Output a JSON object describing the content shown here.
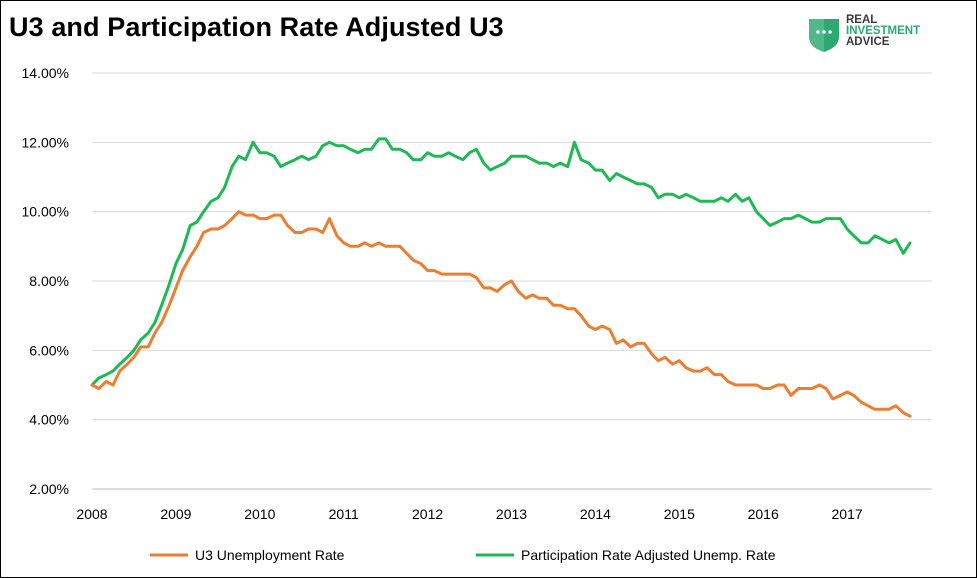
{
  "page_title": "U3 and Participation Rate Adjusted U3",
  "logo": {
    "line1": "REAL",
    "line2": "INVESTMENT",
    "line3": "ADVICE",
    "icon": "shield-dots-icon"
  },
  "chart_data": {
    "type": "line",
    "title": "U3 and Participation Rate Adjusted U3",
    "xlabel": "",
    "ylabel": "",
    "xlim": [
      2008,
      2017.85
    ],
    "ylim": [
      2,
      14
    ],
    "grid": true,
    "legend_position": "bottom",
    "x_tick_labels": [
      "2008",
      "2009",
      "2010",
      "2011",
      "2012",
      "2013",
      "2014",
      "2015",
      "2016",
      "2017"
    ],
    "y_tick_labels": [
      "2.00%",
      "4.00%",
      "6.00%",
      "8.00%",
      "10.00%",
      "12.00%",
      "14.00%"
    ],
    "series": [
      {
        "name": "U3 Unemployment Rate",
        "color": "#ED7D31",
        "points": [
          [
            2008.0,
            5.0
          ],
          [
            2008.08,
            4.9
          ],
          [
            2008.17,
            5.1
          ],
          [
            2008.25,
            5.0
          ],
          [
            2008.33,
            5.4
          ],
          [
            2008.42,
            5.6
          ],
          [
            2008.5,
            5.8
          ],
          [
            2008.58,
            6.1
          ],
          [
            2008.67,
            6.1
          ],
          [
            2008.75,
            6.5
          ],
          [
            2008.83,
            6.8
          ],
          [
            2008.92,
            7.3
          ],
          [
            2009.0,
            7.8
          ],
          [
            2009.08,
            8.3
          ],
          [
            2009.17,
            8.7
          ],
          [
            2009.25,
            9.0
          ],
          [
            2009.33,
            9.4
          ],
          [
            2009.42,
            9.5
          ],
          [
            2009.5,
            9.5
          ],
          [
            2009.58,
            9.6
          ],
          [
            2009.67,
            9.8
          ],
          [
            2009.75,
            10.0
          ],
          [
            2009.83,
            9.9
          ],
          [
            2009.92,
            9.9
          ],
          [
            2010.0,
            9.8
          ],
          [
            2010.08,
            9.8
          ],
          [
            2010.17,
            9.9
          ],
          [
            2010.25,
            9.9
          ],
          [
            2010.33,
            9.6
          ],
          [
            2010.42,
            9.4
          ],
          [
            2010.5,
            9.4
          ],
          [
            2010.58,
            9.5
          ],
          [
            2010.67,
            9.5
          ],
          [
            2010.75,
            9.4
          ],
          [
            2010.83,
            9.8
          ],
          [
            2010.92,
            9.3
          ],
          [
            2011.0,
            9.1
          ],
          [
            2011.08,
            9.0
          ],
          [
            2011.17,
            9.0
          ],
          [
            2011.25,
            9.1
          ],
          [
            2011.33,
            9.0
          ],
          [
            2011.42,
            9.1
          ],
          [
            2011.5,
            9.0
          ],
          [
            2011.58,
            9.0
          ],
          [
            2011.67,
            9.0
          ],
          [
            2011.75,
            8.8
          ],
          [
            2011.83,
            8.6
          ],
          [
            2011.92,
            8.5
          ],
          [
            2012.0,
            8.3
          ],
          [
            2012.08,
            8.3
          ],
          [
            2012.17,
            8.2
          ],
          [
            2012.25,
            8.2
          ],
          [
            2012.33,
            8.2
          ],
          [
            2012.42,
            8.2
          ],
          [
            2012.5,
            8.2
          ],
          [
            2012.58,
            8.1
          ],
          [
            2012.67,
            7.8
          ],
          [
            2012.75,
            7.8
          ],
          [
            2012.83,
            7.7
          ],
          [
            2012.92,
            7.9
          ],
          [
            2013.0,
            8.0
          ],
          [
            2013.08,
            7.7
          ],
          [
            2013.17,
            7.5
          ],
          [
            2013.25,
            7.6
          ],
          [
            2013.33,
            7.5
          ],
          [
            2013.42,
            7.5
          ],
          [
            2013.5,
            7.3
          ],
          [
            2013.58,
            7.3
          ],
          [
            2013.67,
            7.2
          ],
          [
            2013.75,
            7.2
          ],
          [
            2013.83,
            7.0
          ],
          [
            2013.92,
            6.7
          ],
          [
            2014.0,
            6.6
          ],
          [
            2014.08,
            6.7
          ],
          [
            2014.17,
            6.6
          ],
          [
            2014.25,
            6.2
          ],
          [
            2014.33,
            6.3
          ],
          [
            2014.42,
            6.1
          ],
          [
            2014.5,
            6.2
          ],
          [
            2014.58,
            6.2
          ],
          [
            2014.67,
            5.9
          ],
          [
            2014.75,
            5.7
          ],
          [
            2014.83,
            5.8
          ],
          [
            2014.92,
            5.6
          ],
          [
            2015.0,
            5.7
          ],
          [
            2015.08,
            5.5
          ],
          [
            2015.17,
            5.4
          ],
          [
            2015.25,
            5.4
          ],
          [
            2015.33,
            5.5
          ],
          [
            2015.42,
            5.3
          ],
          [
            2015.5,
            5.3
          ],
          [
            2015.58,
            5.1
          ],
          [
            2015.67,
            5.0
          ],
          [
            2015.75,
            5.0
          ],
          [
            2015.83,
            5.0
          ],
          [
            2015.92,
            5.0
          ],
          [
            2016.0,
            4.9
          ],
          [
            2016.08,
            4.9
          ],
          [
            2016.17,
            5.0
          ],
          [
            2016.25,
            5.0
          ],
          [
            2016.33,
            4.7
          ],
          [
            2016.42,
            4.9
          ],
          [
            2016.5,
            4.9
          ],
          [
            2016.58,
            4.9
          ],
          [
            2016.67,
            5.0
          ],
          [
            2016.75,
            4.9
          ],
          [
            2016.83,
            4.6
          ],
          [
            2016.92,
            4.7
          ],
          [
            2017.0,
            4.8
          ],
          [
            2017.08,
            4.7
          ],
          [
            2017.17,
            4.5
          ],
          [
            2017.25,
            4.4
          ],
          [
            2017.33,
            4.3
          ],
          [
            2017.42,
            4.3
          ],
          [
            2017.5,
            4.3
          ],
          [
            2017.58,
            4.4
          ],
          [
            2017.67,
            4.2
          ],
          [
            2017.75,
            4.1
          ]
        ]
      },
      {
        "name": "Participation Rate Adjusted Unemp. Rate",
        "color": "#1DB954",
        "points": [
          [
            2008.0,
            5.0
          ],
          [
            2008.08,
            5.2
          ],
          [
            2008.17,
            5.3
          ],
          [
            2008.25,
            5.4
          ],
          [
            2008.33,
            5.6
          ],
          [
            2008.42,
            5.8
          ],
          [
            2008.5,
            6.0
          ],
          [
            2008.58,
            6.3
          ],
          [
            2008.67,
            6.5
          ],
          [
            2008.75,
            6.8
          ],
          [
            2008.83,
            7.3
          ],
          [
            2008.92,
            7.9
          ],
          [
            2009.0,
            8.5
          ],
          [
            2009.08,
            8.9
          ],
          [
            2009.17,
            9.6
          ],
          [
            2009.25,
            9.7
          ],
          [
            2009.33,
            10.0
          ],
          [
            2009.42,
            10.3
          ],
          [
            2009.5,
            10.4
          ],
          [
            2009.58,
            10.7
          ],
          [
            2009.67,
            11.3
          ],
          [
            2009.75,
            11.6
          ],
          [
            2009.83,
            11.5
          ],
          [
            2009.92,
            12.0
          ],
          [
            2010.0,
            11.7
          ],
          [
            2010.08,
            11.7
          ],
          [
            2010.17,
            11.6
          ],
          [
            2010.25,
            11.3
          ],
          [
            2010.33,
            11.4
          ],
          [
            2010.42,
            11.5
          ],
          [
            2010.5,
            11.6
          ],
          [
            2010.58,
            11.5
          ],
          [
            2010.67,
            11.6
          ],
          [
            2010.75,
            11.9
          ],
          [
            2010.83,
            12.0
          ],
          [
            2010.92,
            11.9
          ],
          [
            2011.0,
            11.9
          ],
          [
            2011.08,
            11.8
          ],
          [
            2011.17,
            11.7
          ],
          [
            2011.25,
            11.8
          ],
          [
            2011.33,
            11.8
          ],
          [
            2011.42,
            12.1
          ],
          [
            2011.5,
            12.1
          ],
          [
            2011.58,
            11.8
          ],
          [
            2011.67,
            11.8
          ],
          [
            2011.75,
            11.7
          ],
          [
            2011.83,
            11.5
          ],
          [
            2011.92,
            11.5
          ],
          [
            2012.0,
            11.7
          ],
          [
            2012.08,
            11.6
          ],
          [
            2012.17,
            11.6
          ],
          [
            2012.25,
            11.7
          ],
          [
            2012.33,
            11.6
          ],
          [
            2012.42,
            11.5
          ],
          [
            2012.5,
            11.7
          ],
          [
            2012.58,
            11.8
          ],
          [
            2012.67,
            11.4
          ],
          [
            2012.75,
            11.2
          ],
          [
            2012.83,
            11.3
          ],
          [
            2012.92,
            11.4
          ],
          [
            2013.0,
            11.6
          ],
          [
            2013.08,
            11.6
          ],
          [
            2013.17,
            11.6
          ],
          [
            2013.25,
            11.5
          ],
          [
            2013.33,
            11.4
          ],
          [
            2013.42,
            11.4
          ],
          [
            2013.5,
            11.3
          ],
          [
            2013.58,
            11.4
          ],
          [
            2013.67,
            11.3
          ],
          [
            2013.75,
            12.0
          ],
          [
            2013.83,
            11.5
          ],
          [
            2013.92,
            11.4
          ],
          [
            2014.0,
            11.2
          ],
          [
            2014.08,
            11.2
          ],
          [
            2014.17,
            10.9
          ],
          [
            2014.25,
            11.1
          ],
          [
            2014.33,
            11.0
          ],
          [
            2014.42,
            10.9
          ],
          [
            2014.5,
            10.8
          ],
          [
            2014.58,
            10.8
          ],
          [
            2014.67,
            10.7
          ],
          [
            2014.75,
            10.4
          ],
          [
            2014.83,
            10.5
          ],
          [
            2014.92,
            10.5
          ],
          [
            2015.0,
            10.4
          ],
          [
            2015.08,
            10.5
          ],
          [
            2015.17,
            10.4
          ],
          [
            2015.25,
            10.3
          ],
          [
            2015.33,
            10.3
          ],
          [
            2015.42,
            10.3
          ],
          [
            2015.5,
            10.4
          ],
          [
            2015.58,
            10.3
          ],
          [
            2015.67,
            10.5
          ],
          [
            2015.75,
            10.3
          ],
          [
            2015.83,
            10.4
          ],
          [
            2015.92,
            10.0
          ],
          [
            2016.0,
            9.8
          ],
          [
            2016.08,
            9.6
          ],
          [
            2016.17,
            9.7
          ],
          [
            2016.25,
            9.8
          ],
          [
            2016.33,
            9.8
          ],
          [
            2016.42,
            9.9
          ],
          [
            2016.5,
            9.8
          ],
          [
            2016.58,
            9.7
          ],
          [
            2016.67,
            9.7
          ],
          [
            2016.75,
            9.8
          ],
          [
            2016.83,
            9.8
          ],
          [
            2016.92,
            9.8
          ],
          [
            2017.0,
            9.5
          ],
          [
            2017.08,
            9.3
          ],
          [
            2017.17,
            9.1
          ],
          [
            2017.25,
            9.1
          ],
          [
            2017.33,
            9.3
          ],
          [
            2017.42,
            9.2
          ],
          [
            2017.5,
            9.1
          ],
          [
            2017.58,
            9.2
          ],
          [
            2017.67,
            8.8
          ],
          [
            2017.75,
            9.1
          ]
        ]
      }
    ]
  }
}
